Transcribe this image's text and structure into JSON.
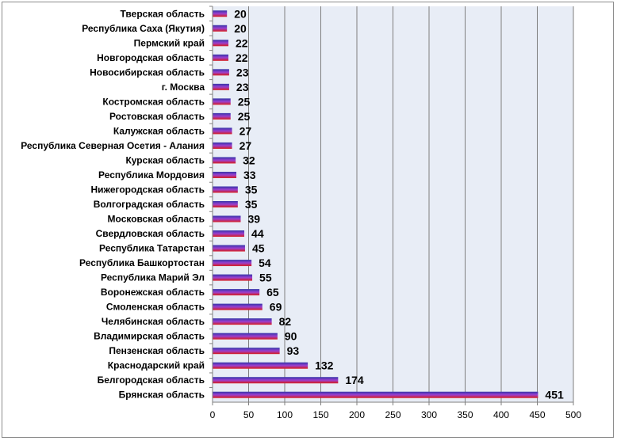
{
  "chart_data": {
    "type": "bar",
    "orientation": "horizontal",
    "categories": [
      "Тверская область",
      "Республика Саха (Якутия)",
      "Пермский край",
      "Новгородская область",
      "Новосибирская область",
      "г. Москва",
      "Костромская область",
      "Ростовская область",
      "Калужская область",
      "Республика Северная Осетия - Алания",
      "Курская область",
      "Республика Мордовия",
      "Нижегородская область",
      "Волгоградская область",
      "Московская область",
      "Свердловская область",
      "Республика Татарстан",
      "Республика Башкортостан",
      "Республика Марий Эл",
      "Воронежская область",
      "Смоленская область",
      "Челябинская область",
      "Владимирская область",
      "Пензенская область",
      "Краснодарский край",
      "Белгородская область",
      "Брянская область"
    ],
    "values": [
      20,
      20,
      22,
      22,
      23,
      23,
      25,
      25,
      27,
      27,
      32,
      33,
      35,
      35,
      39,
      44,
      45,
      54,
      55,
      65,
      69,
      82,
      90,
      93,
      132,
      174,
      451
    ],
    "xlim": [
      0,
      500
    ],
    "xticks": [
      0,
      50,
      100,
      150,
      200,
      250,
      300,
      350,
      400,
      450,
      500
    ],
    "grid": "vertical",
    "legend": "none",
    "title": "",
    "xlabel": "",
    "ylabel": "",
    "colors": {
      "plot_background": "#e8edf6",
      "bar_top": "#3535a8",
      "bar_mid": "#9a3fd0",
      "bar_bottom": "#d81c1c",
      "grid": "#7f7f7f"
    }
  }
}
